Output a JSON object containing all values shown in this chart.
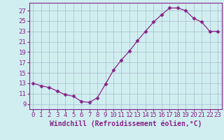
{
  "x": [
    0,
    1,
    2,
    3,
    4,
    5,
    6,
    7,
    8,
    9,
    10,
    11,
    12,
    13,
    14,
    15,
    16,
    17,
    18,
    19,
    20,
    21,
    22,
    23
  ],
  "y": [
    13,
    12.5,
    12.2,
    11.5,
    10.8,
    10.5,
    9.5,
    9.3,
    10.2,
    12.8,
    15.5,
    17.5,
    19.2,
    21.2,
    23.0,
    24.8,
    26.2,
    27.5,
    27.5,
    27.0,
    25.5,
    24.8,
    23.0,
    23.0
  ],
  "line_color": "#882288",
  "marker": "D",
  "markersize": 2.5,
  "linewidth": 0.9,
  "bg_color": "#d0eef0",
  "grid_color": "#aabbcc",
  "label_color": "#882288",
  "xlabel": "Windchill (Refroidissement éolien,°C)",
  "yticks": [
    9,
    11,
    13,
    15,
    17,
    19,
    21,
    23,
    25,
    27
  ],
  "ylim": [
    8.0,
    28.5
  ],
  "xlim": [
    -0.5,
    23.5
  ],
  "xticks": [
    0,
    1,
    2,
    3,
    4,
    5,
    6,
    7,
    8,
    9,
    10,
    11,
    12,
    13,
    14,
    15,
    16,
    17,
    18,
    19,
    20,
    21,
    22,
    23
  ],
  "font_family": "monospace",
  "xlabel_fontsize": 7,
  "tick_fontsize": 6.5
}
